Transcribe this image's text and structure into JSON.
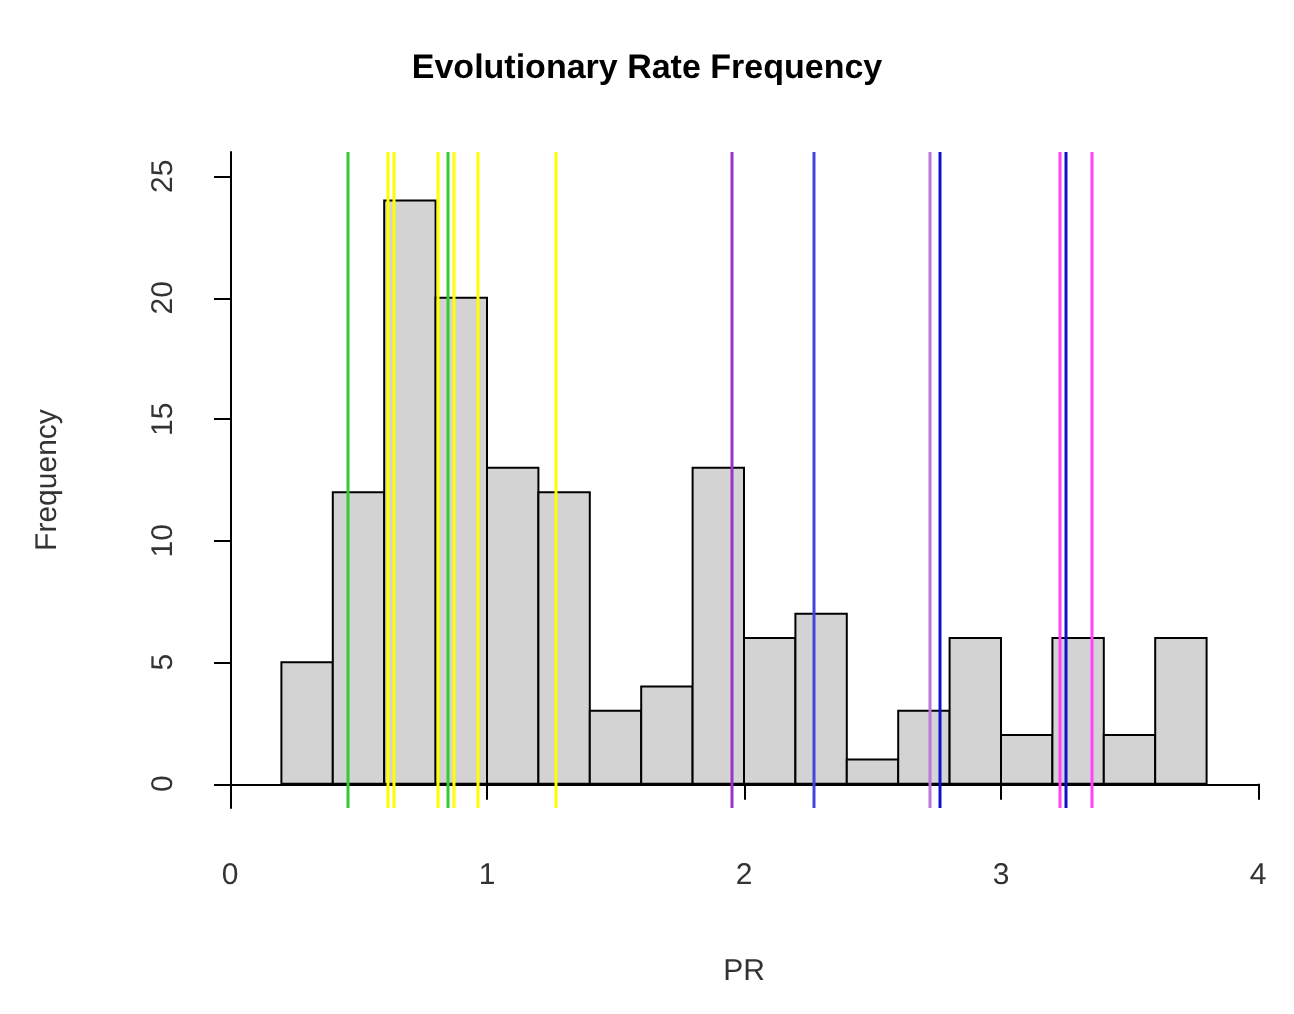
{
  "chart_data": {
    "type": "histogram",
    "title": "Evolutionary Rate Frequency",
    "xlabel": "PR",
    "ylabel": "Frequency",
    "bins": [
      0.2,
      0.4,
      0.6,
      0.8,
      1.0,
      1.2,
      1.4,
      1.6,
      1.8,
      2.0,
      2.2,
      2.4,
      2.6,
      2.8,
      3.0,
      3.2,
      3.4,
      3.6,
      3.8
    ],
    "values": [
      5,
      12,
      24,
      20,
      13,
      12,
      3,
      4,
      13,
      6,
      7,
      1,
      3,
      6,
      2,
      6,
      2,
      6
    ],
    "color": "#d3d3d3",
    "xlim": [
      0,
      4
    ],
    "xticks": [
      0,
      1,
      2,
      3,
      4
    ],
    "ylim": [
      -1,
      26
    ],
    "yticks": [
      0,
      5,
      10,
      15,
      20,
      25
    ],
    "grid": false,
    "legend": false,
    "ref_lines": [
      {
        "axis": "x",
        "value": 0.46,
        "color": "#33cc33"
      },
      {
        "axis": "x",
        "value": 0.61,
        "color": "#ffff00"
      },
      {
        "axis": "x",
        "value": 0.64,
        "color": "#ffff00"
      },
      {
        "axis": "x",
        "value": 0.81,
        "color": "#ffff00"
      },
      {
        "axis": "x",
        "value": 0.85,
        "color": "#33cc33"
      },
      {
        "axis": "x",
        "value": 0.87,
        "color": "#ffff00"
      },
      {
        "axis": "x",
        "value": 0.96,
        "color": "#ffff00"
      },
      {
        "axis": "x",
        "value": 1.27,
        "color": "#ffff00"
      },
      {
        "axis": "x",
        "value": 1.95,
        "color": "#9933cc"
      },
      {
        "axis": "x",
        "value": 2.27,
        "color": "#4444dd"
      },
      {
        "axis": "x",
        "value": 2.72,
        "color": "#bb77dd"
      },
      {
        "axis": "x",
        "value": 2.76,
        "color": "#1111cc"
      },
      {
        "axis": "x",
        "value": 3.23,
        "color": "#ff44ff"
      },
      {
        "axis": "x",
        "value": 3.25,
        "color": "#1111cc"
      },
      {
        "axis": "x",
        "value": 3.35,
        "color": "#ff44ff"
      }
    ]
  }
}
